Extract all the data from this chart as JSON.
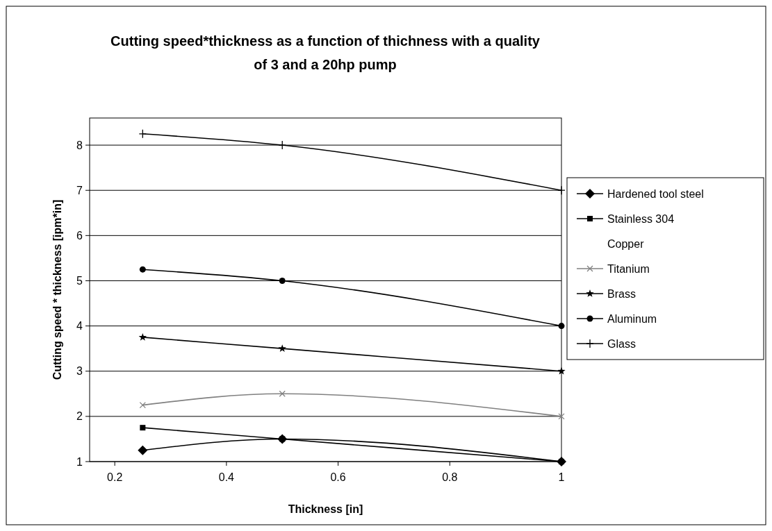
{
  "chart_data": {
    "type": "line",
    "title": "Cutting speed*thickness as a function of thichness with a quality of 3 and a 20hp pump",
    "xlabel": "Thickness [in]",
    "ylabel": "Cutting speed * thickness [ipm*in]",
    "x": [
      0.25,
      0.5,
      1
    ],
    "xlim": [
      0.155,
      1
    ],
    "xticks": [
      0.2,
      0.4,
      0.6,
      0.8,
      1
    ],
    "ylim": [
      1,
      8.6
    ],
    "yticks": [
      1,
      2,
      3,
      4,
      5,
      6,
      7,
      8
    ],
    "grid": "y",
    "legend": "right",
    "series": [
      {
        "name": "Hardened tool steel",
        "color": "#000000",
        "marker": "diamond",
        "values": [
          1.25,
          1.5,
          1.0
        ]
      },
      {
        "name": "Stainless 304",
        "color": "#000000",
        "marker": "square",
        "values": [
          1.75,
          1.5,
          1.0
        ]
      },
      {
        "name": "Copper",
        "values": [
          null,
          null,
          null
        ]
      },
      {
        "name": "Titanium",
        "color": "#808080",
        "marker": "x",
        "values": [
          2.25,
          2.5,
          2.0
        ]
      },
      {
        "name": "Brass",
        "color": "#000000",
        "marker": "star",
        "values": [
          3.75,
          3.5,
          3.0
        ]
      },
      {
        "name": "Aluminum",
        "color": "#000000",
        "marker": "circle",
        "values": [
          5.25,
          5.0,
          4.0
        ]
      },
      {
        "name": "Glass",
        "color": "#000000",
        "marker": "cross",
        "values": [
          8.25,
          8.0,
          7.0
        ]
      }
    ]
  }
}
